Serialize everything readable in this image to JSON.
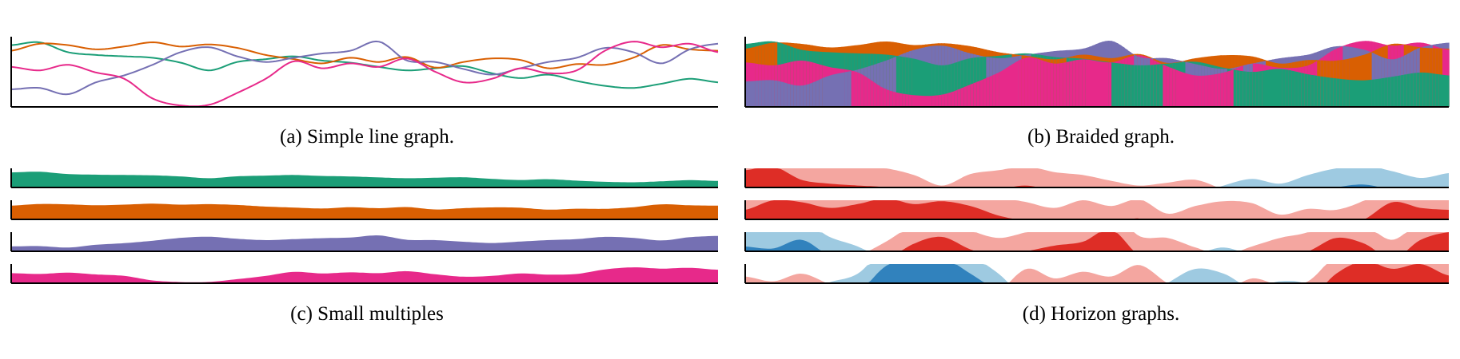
{
  "captions": {
    "a": "(a)  Simple line graph.",
    "b": "(b)  Braided graph.",
    "c": "(c)  Small multiples",
    "d": "(d)  Horizon graphs."
  },
  "colors": {
    "teal": "#1b9e77",
    "orange": "#d95f02",
    "purple": "#7570b3",
    "pink": "#e7298a",
    "blue_band1": "#9ecae1",
    "blue_band2": "#3182bd",
    "red_band1": "#f4a6a0",
    "red_band2": "#de2d26",
    "axis": "#000000"
  },
  "chart_data": [
    {
      "id": "a",
      "type": "line",
      "caption": "(a)  Simple line graph.",
      "x": [
        0,
        4,
        8,
        12,
        16,
        20,
        24,
        28,
        32,
        36,
        40,
        44,
        48,
        52,
        56,
        60,
        64,
        68,
        72,
        76,
        80,
        84,
        88,
        92,
        96,
        100
      ],
      "series": [
        {
          "color_key": "teal",
          "values": [
            0.88,
            0.92,
            0.78,
            0.74,
            0.72,
            0.7,
            0.63,
            0.52,
            0.64,
            0.68,
            0.72,
            0.66,
            0.63,
            0.57,
            0.52,
            0.55,
            0.58,
            0.48,
            0.41,
            0.46,
            0.37,
            0.3,
            0.27,
            0.33,
            0.4,
            0.35
          ]
        },
        {
          "color_key": "orange",
          "values": [
            0.8,
            0.9,
            0.88,
            0.82,
            0.86,
            0.92,
            0.86,
            0.89,
            0.84,
            0.74,
            0.68,
            0.62,
            0.7,
            0.64,
            0.71,
            0.56,
            0.64,
            0.69,
            0.67,
            0.55,
            0.61,
            0.6,
            0.7,
            0.88,
            0.82,
            0.8
          ]
        },
        {
          "color_key": "purple",
          "values": [
            0.25,
            0.27,
            0.18,
            0.35,
            0.45,
            0.6,
            0.78,
            0.85,
            0.72,
            0.64,
            0.7,
            0.76,
            0.8,
            0.93,
            0.66,
            0.64,
            0.54,
            0.46,
            0.55,
            0.64,
            0.7,
            0.84,
            0.78,
            0.62,
            0.82,
            0.9
          ]
        },
        {
          "color_key": "pink",
          "values": [
            0.57,
            0.52,
            0.6,
            0.49,
            0.4,
            0.12,
            0.02,
            0.03,
            0.2,
            0.4,
            0.65,
            0.55,
            0.62,
            0.57,
            0.69,
            0.5,
            0.35,
            0.4,
            0.55,
            0.48,
            0.52,
            0.8,
            0.93,
            0.85,
            0.9,
            0.78
          ]
        }
      ]
    },
    {
      "id": "b",
      "type": "area",
      "caption": "(b)  Braided graph.",
      "note": "braided overlapping areas of the same four series"
    },
    {
      "id": "c",
      "type": "area",
      "caption": "(c)  Small multiples",
      "note": "one filled area row per series (teal, orange, purple, pink)"
    },
    {
      "id": "d",
      "type": "area",
      "caption": "(d)  Horizon graphs.",
      "note": "horizon graph rows: blue bands below baseline, red bands above",
      "rows": [
        {
          "series_index": 0
        },
        {
          "series_index": 1
        },
        {
          "series_index": 2
        },
        {
          "series_index": 3
        }
      ]
    }
  ]
}
